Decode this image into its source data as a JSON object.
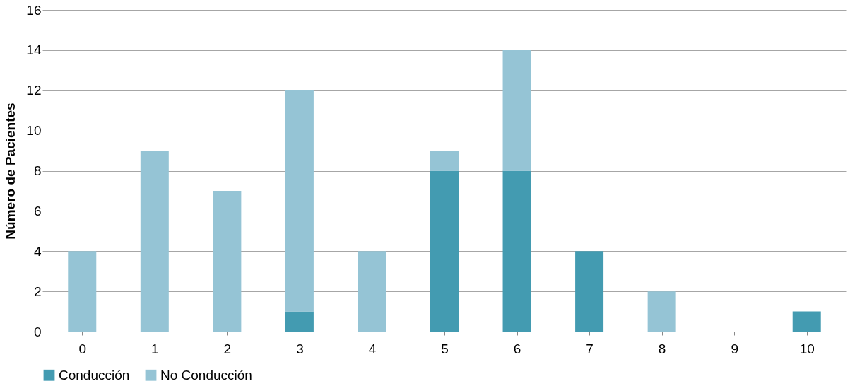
{
  "chart_data": {
    "type": "bar",
    "stacked": true,
    "ylabel": "Número de Pacientes",
    "categories": [
      "0",
      "1",
      "2",
      "3",
      "4",
      "5",
      "6",
      "7",
      "8",
      "9",
      "10"
    ],
    "series": [
      {
        "name": "Conducción",
        "color": "#439bb1",
        "values": [
          0,
          0,
          0,
          1,
          0,
          8,
          8,
          4,
          0,
          0,
          1
        ]
      },
      {
        "name": "No Conducción",
        "color": "#95c4d5",
        "values": [
          4,
          9,
          7,
          11,
          4,
          1,
          6,
          0,
          2,
          0,
          0
        ]
      }
    ],
    "ylim": [
      0,
      16
    ],
    "yticks": [
      0,
      2,
      4,
      6,
      8,
      10,
      12,
      14,
      16
    ],
    "grid": "y",
    "legend": "bottom"
  }
}
